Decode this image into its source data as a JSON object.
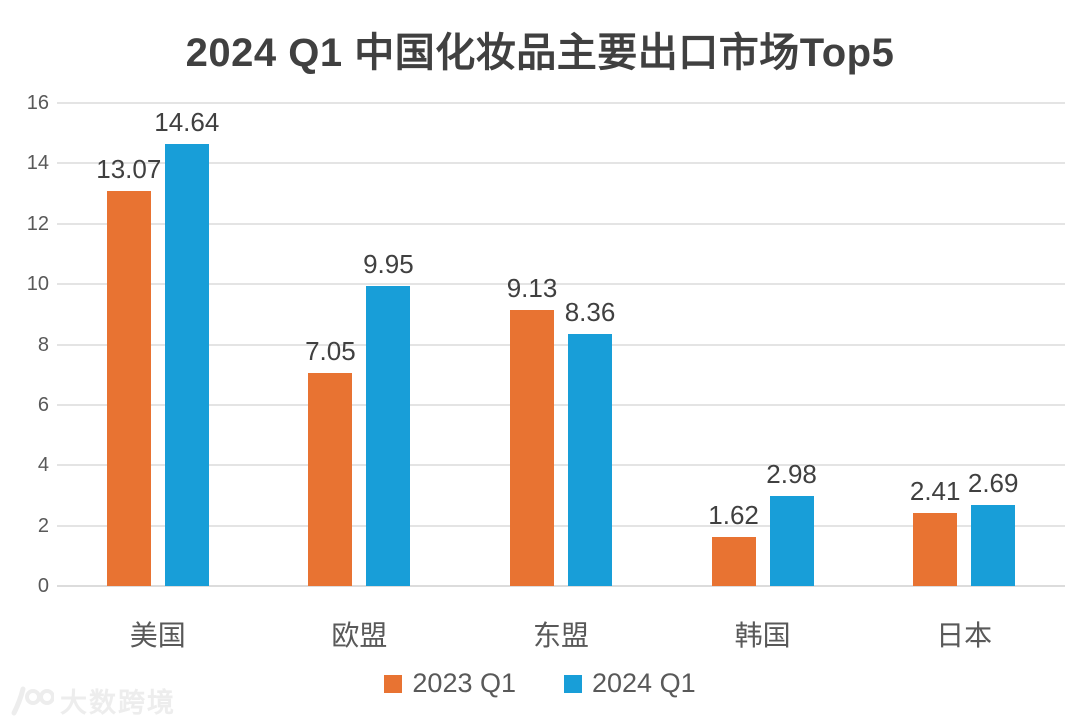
{
  "title": "2024 Q1 中国化妆品主要出口市场Top5",
  "chart_data": {
    "type": "bar",
    "categories": [
      "美国",
      "欧盟",
      "东盟",
      "韩国",
      "日本"
    ],
    "series": [
      {
        "name": "2023 Q1",
        "color": "#e87332",
        "values": [
          13.07,
          7.05,
          9.13,
          1.62,
          2.41
        ]
      },
      {
        "name": "2024 Q1",
        "color": "#189ed8",
        "values": [
          14.64,
          9.95,
          8.36,
          2.98,
          2.69
        ]
      }
    ],
    "ylim": [
      0,
      16
    ],
    "yticks": [
      0,
      2,
      4,
      6,
      8,
      10,
      12,
      14,
      16
    ],
    "grid": true,
    "legend_position": "bottom",
    "value_label_decimals": 2
  },
  "colors": {
    "title_text": "#404040",
    "axis_text": "#595959",
    "gridline": "#e4e4e4"
  },
  "watermark": {
    "text": "大数跨境",
    "logo": "100-logo"
  }
}
